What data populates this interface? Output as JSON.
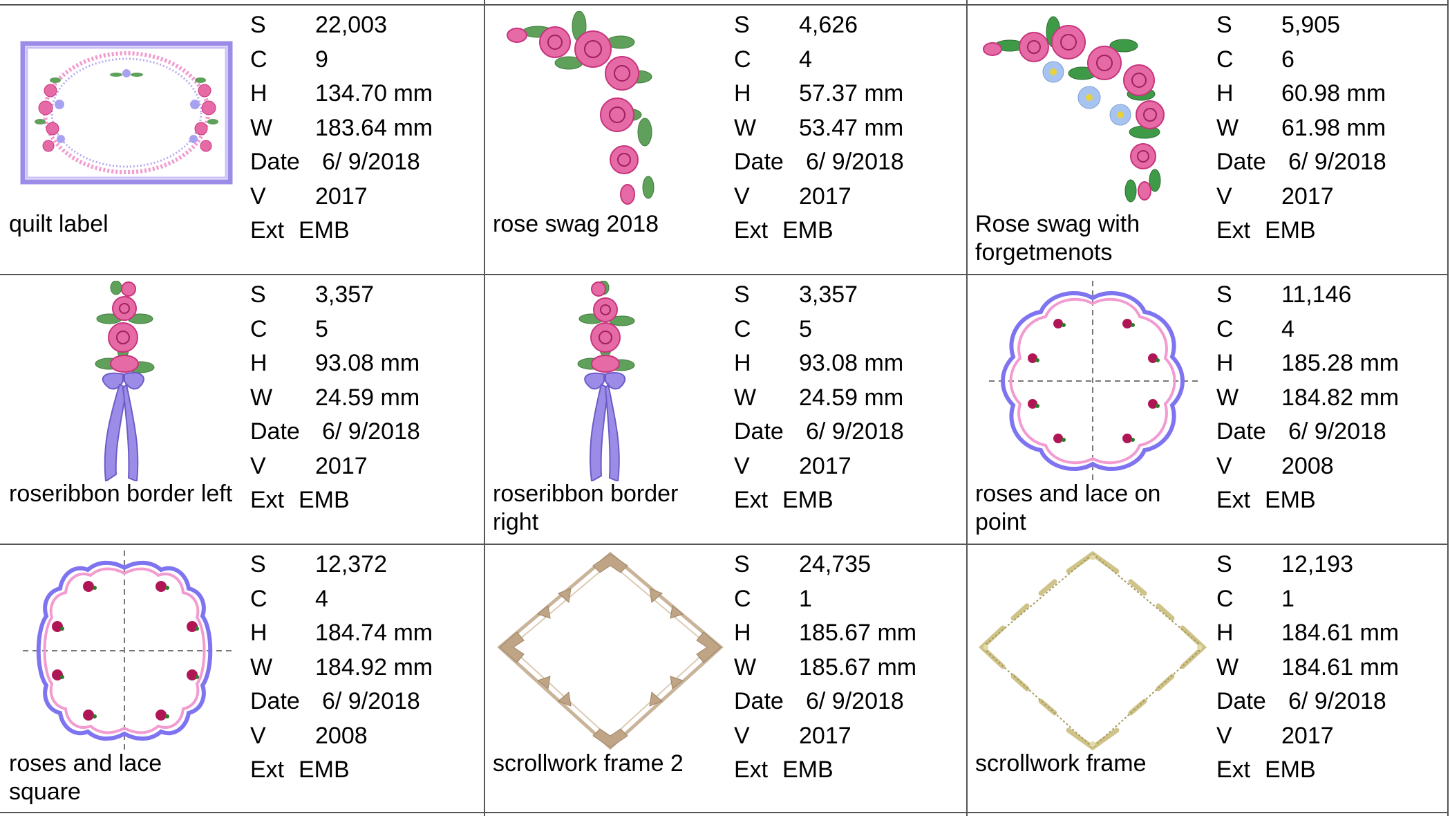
{
  "designs": [
    {
      "name": "quilt label",
      "thumbnail_icon": "quilt-label-icon",
      "stats": {
        "S_label": "S",
        "S": "22,003",
        "C_label": "C",
        "C": "9",
        "H_label": "H",
        "H": "134.70 mm",
        "W_label": "W",
        "W": "183.64 mm",
        "Date_label": "Date",
        "Date": "6/ 9/2018",
        "V_label": "V",
        "V": "2017",
        "Ext_label": "Ext",
        "Ext": "EMB"
      }
    },
    {
      "name": "rose swag 2018",
      "thumbnail_icon": "rose-swag-icon",
      "stats": {
        "S_label": "S",
        "S": "4,626",
        "C_label": "C",
        "C": "4",
        "H_label": "H",
        "H": "57.37 mm",
        "W_label": "W",
        "W": "53.47 mm",
        "Date_label": "Date",
        "Date": "6/ 9/2018",
        "V_label": "V",
        "V": "2017",
        "Ext_label": "Ext",
        "Ext": "EMB"
      }
    },
    {
      "name": "Rose swag with forgetmenots",
      "thumbnail_icon": "rose-swag-forgetmenots-icon",
      "stats": {
        "S_label": "S",
        "S": "5,905",
        "C_label": "C",
        "C": "6",
        "H_label": "H",
        "H": "60.98 mm",
        "W_label": "W",
        "W": "61.98 mm",
        "Date_label": "Date",
        "Date": "6/ 9/2018",
        "V_label": "V",
        "V": "2017",
        "Ext_label": "Ext",
        "Ext": "EMB"
      }
    },
    {
      "name": "roseribbon border left",
      "thumbnail_icon": "roseribbon-left-icon",
      "stats": {
        "S_label": "S",
        "S": "3,357",
        "C_label": "C",
        "C": "5",
        "H_label": "H",
        "H": "93.08 mm",
        "W_label": "W",
        "W": "24.59 mm",
        "Date_label": "Date",
        "Date": "6/ 9/2018",
        "V_label": "V",
        "V": "2017",
        "Ext_label": "Ext",
        "Ext": "EMB"
      }
    },
    {
      "name": "roseribbon border right",
      "thumbnail_icon": "roseribbon-right-icon",
      "stats": {
        "S_label": "S",
        "S": "3,357",
        "C_label": "C",
        "C": "5",
        "H_label": "H",
        "H": "93.08 mm",
        "W_label": "W",
        "W": "24.59 mm",
        "Date_label": "Date",
        "Date": "6/ 9/2018",
        "V_label": "V",
        "V": "2017",
        "Ext_label": "Ext",
        "Ext": "EMB"
      }
    },
    {
      "name": "roses and lace on point",
      "thumbnail_icon": "roses-lace-point-icon",
      "stats": {
        "S_label": "S",
        "S": "11,146",
        "C_label": "C",
        "C": "4",
        "H_label": "H",
        "H": "185.28 mm",
        "W_label": "W",
        "W": "184.82 mm",
        "Date_label": "Date",
        "Date": "6/ 9/2018",
        "V_label": "V",
        "V": "2008",
        "Ext_label": "Ext",
        "Ext": "EMB"
      }
    },
    {
      "name": "roses and lace square",
      "thumbnail_icon": "roses-lace-square-icon",
      "stats": {
        "S_label": "S",
        "S": "12,372",
        "C_label": "C",
        "C": "4",
        "H_label": "H",
        "H": "184.74 mm",
        "W_label": "W",
        "W": "184.92 mm",
        "Date_label": "Date",
        "Date": "6/ 9/2018",
        "V_label": "V",
        "V": "2008",
        "Ext_label": "Ext",
        "Ext": "EMB"
      }
    },
    {
      "name": "scrollwork frame 2",
      "thumbnail_icon": "scrollwork-frame-2-icon",
      "stats": {
        "S_label": "S",
        "S": "24,735",
        "C_label": "C",
        "C": "1",
        "H_label": "H",
        "H": "185.67 mm",
        "W_label": "W",
        "W": "185.67 mm",
        "Date_label": "Date",
        "Date": "6/ 9/2018",
        "V_label": "V",
        "V": "2017",
        "Ext_label": "Ext",
        "Ext": "EMB"
      }
    },
    {
      "name": "scrollwork frame",
      "thumbnail_icon": "scrollwork-frame-icon",
      "stats": {
        "S_label": "S",
        "S": "12,193",
        "C_label": "C",
        "C": "1",
        "H_label": "H",
        "H": "184.61 mm",
        "W_label": "W",
        "W": "184.61 mm",
        "Date_label": "Date",
        "Date": "6/ 9/2018",
        "V_label": "V",
        "V": "2017",
        "Ext_label": "Ext",
        "Ext": "EMB"
      }
    }
  ],
  "colors": {
    "grid": "#555555",
    "rose": "#e56aa6",
    "rose_dark": "#c8347c",
    "leaf": "#5fa05a",
    "lavender": "#9c8ce8",
    "forgetmenot": "#a7c4f0",
    "scroll_tan": "#c9b49a",
    "scroll_gold": "#cfc38a",
    "lace_pink": "#f29bd0",
    "lace_blue": "#7f74f0"
  }
}
